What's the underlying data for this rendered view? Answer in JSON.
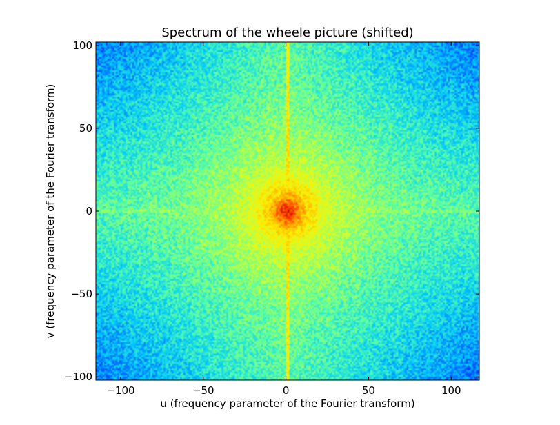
{
  "chart_data": {
    "type": "heatmap",
    "title": "Spectrum of the wheele picture (shifted)",
    "xlabel": "u (frequency parameter of the Fourier transform)",
    "ylabel": "v (frequency parameter of the Fourier transform)",
    "xlim": [
      -115,
      117
    ],
    "ylim": [
      -102,
      102
    ],
    "x_ticks": [
      -100,
      -50,
      0,
      50,
      100
    ],
    "y_ticks": [
      -100,
      -50,
      0,
      50,
      100
    ],
    "x_tick_labels": [
      "−100",
      "−50",
      "0",
      "50",
      "100"
    ],
    "y_tick_labels": [
      "−100",
      "−50",
      "0",
      "50",
      "100"
    ],
    "colormap": "jet",
    "colormap_stops": [
      "#0000aa",
      "#0044ff",
      "#00c8ff",
      "#55ffaa",
      "#ccff33",
      "#ffee00",
      "#ffaa00",
      "#ff4400",
      "#cc0000"
    ],
    "value_range": [
      0,
      1
    ],
    "peak_center": [
      1,
      0
    ],
    "features": {
      "background_level": 0.36,
      "central_peak_level": 0.95,
      "vertical_axis_streak_level": 0.66,
      "horizontal_axis_streak_level": 0.5,
      "ring_radii": [
        4,
        7,
        10,
        14,
        18
      ],
      "corner_level": 0.22
    },
    "grid": false,
    "legend": "none"
  }
}
